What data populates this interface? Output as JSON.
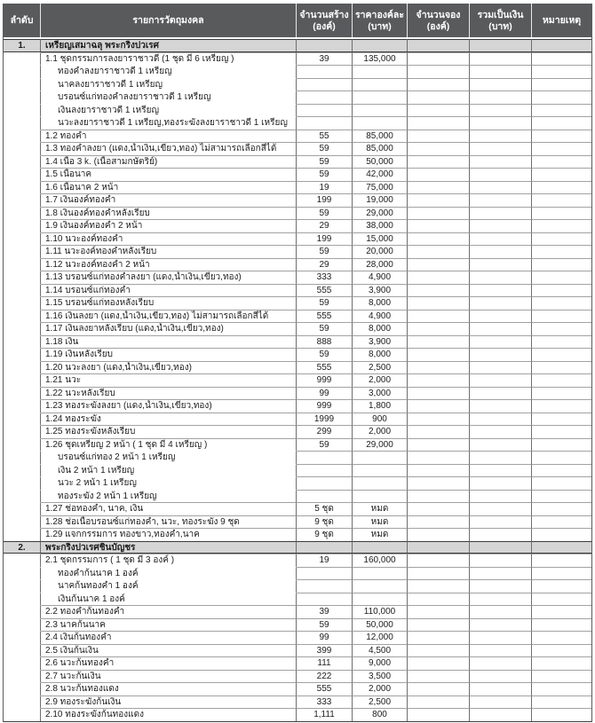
{
  "table": {
    "headers": [
      {
        "line1": "ลำดับ",
        "line2": ""
      },
      {
        "line1": "รายการวัตถุมงคล",
        "line2": ""
      },
      {
        "line1": "จำนวนสร้าง",
        "line2": "(องค์)"
      },
      {
        "line1": "ราคาองค์ละ",
        "line2": "(บาท)"
      },
      {
        "line1": "จำนวนจอง",
        "line2": "(องค์)"
      },
      {
        "line1": "รวมเป็นเงิน",
        "line2": "(บาท)"
      },
      {
        "line1": "หมายเหตุ",
        "line2": ""
      }
    ],
    "rows": [
      {
        "type": "section",
        "no": "1.",
        "item": "เหรียญเสมาฉลุ พระกริ่งปวเรศ",
        "made": "",
        "price": ""
      },
      {
        "type": "item",
        "no": "",
        "item": "1.1 ชุดกรรมการลงยาราชาวดี (1 ชุด มี 6 เหรียญ )",
        "made": "39",
        "price": "135,000"
      },
      {
        "type": "sub",
        "no": "",
        "item": "ทองคำลงยาราชาวดี 1 เหรียญ",
        "made": "",
        "price": ""
      },
      {
        "type": "sub",
        "no": "",
        "item": "นาคลงยาราชาวดี 1 เหรียญ",
        "made": "",
        "price": ""
      },
      {
        "type": "sub",
        "no": "",
        "item": "บรอนซ์แก่ทองคำลงยาราชาวดี 1 เหรียญ",
        "made": "",
        "price": ""
      },
      {
        "type": "sub",
        "no": "",
        "item": "เงินลงยาราชาวดี 1 เหรียญ",
        "made": "",
        "price": ""
      },
      {
        "type": "sub",
        "no": "",
        "item": "นวะลงยาราชาวดี 1 เหรียญ,ทองระฆังลงยาราชาวดี 1 เหรียญ",
        "made": "",
        "price": ""
      },
      {
        "type": "item",
        "no": "",
        "item": "1.2 ทองคำ",
        "made": "55",
        "price": "85,000"
      },
      {
        "type": "item",
        "no": "",
        "item": "1.3 ทองคำลงยา (แดง,น้ำเงิน,เขียว,ทอง) ไม่สามารถเลือกสีได้",
        "made": "59",
        "price": "85,000"
      },
      {
        "type": "item",
        "no": "",
        "item": "1.4 เนื้อ 3 k. (เนื้อสามกษัตริย์)",
        "made": "59",
        "price": "50,000"
      },
      {
        "type": "item",
        "no": "",
        "item": "1.5 เนื้อนาค",
        "made": "59",
        "price": "42,000"
      },
      {
        "type": "item",
        "no": "",
        "item": "1.6 เนื้อนาค 2 หน้า",
        "made": "19",
        "price": "75,000"
      },
      {
        "type": "item",
        "no": "",
        "item": "1.7 เงินองค์ทองคำ",
        "made": "199",
        "price": "19,000"
      },
      {
        "type": "item",
        "no": "",
        "item": "1.8 เงินองค์ทองคำหลังเรียบ",
        "made": "59",
        "price": "29,000"
      },
      {
        "type": "item",
        "no": "",
        "item": "1.9 เงินองค์ทองคำ 2 หน้า",
        "made": "29",
        "price": "38,000"
      },
      {
        "type": "item",
        "no": "",
        "item": "1.10 นวะองค์ทองคำ",
        "made": "199",
        "price": "15,000"
      },
      {
        "type": "item",
        "no": "",
        "item": "1.11 นวะองค์ทองคำหลังเรียบ",
        "made": "59",
        "price": "20,000"
      },
      {
        "type": "item",
        "no": "",
        "item": "1.12 นวะองค์ทองคำ 2 หน้า",
        "made": "29",
        "price": "28,000"
      },
      {
        "type": "item",
        "no": "",
        "item": "1.13 บรอนซ์แก่ทองคำลงยา (แดง,น้ำเงิน,เขียว,ทอง)",
        "made": "333",
        "price": "4,900"
      },
      {
        "type": "item",
        "no": "",
        "item": "1.14 บรอนซ์แก่ทองคำ",
        "made": "555",
        "price": "3,900"
      },
      {
        "type": "item",
        "no": "",
        "item": "1.15 บรอนซ์แก่ทองหลังเรียบ",
        "made": "59",
        "price": "8,000"
      },
      {
        "type": "item",
        "no": "",
        "item": "1.16 เงินลงยา (แดง,น้ำเงิน,เขียว,ทอง) ไม่สามารถเลือกสีได้",
        "made": "555",
        "price": "4,900"
      },
      {
        "type": "item",
        "no": "",
        "item": "1.17 เงินลงยาหลังเรียบ (แดง,น้ำเงิน,เขียว,ทอง)",
        "made": "59",
        "price": "8,000"
      },
      {
        "type": "item",
        "no": "",
        "item": "1.18 เงิน",
        "made": "888",
        "price": "3,900"
      },
      {
        "type": "item",
        "no": "",
        "item": "1.19 เงินหลังเรียบ",
        "made": "59",
        "price": "8,000"
      },
      {
        "type": "item",
        "no": "",
        "item": "1.20 นวะลงยา (แดง,น้ำเงิน,เขียว,ทอง)",
        "made": "555",
        "price": "2,500"
      },
      {
        "type": "item",
        "no": "",
        "item": "1.21 นวะ",
        "made": "999",
        "price": "2,000"
      },
      {
        "type": "item",
        "no": "",
        "item": "1.22 นวะหลังเรียบ",
        "made": "99",
        "price": "3,000"
      },
      {
        "type": "item",
        "no": "",
        "item": "1.23 ทองระฆังลงยา (แดง,น้ำเงิน,เขียว,ทอง)",
        "made": "999",
        "price": "1,800"
      },
      {
        "type": "item",
        "no": "",
        "item": "1.24 ทองระฆัง",
        "made": "1999",
        "price": "900"
      },
      {
        "type": "item",
        "no": "",
        "item": "1.25 ทองระฆังหลังเรียบ",
        "made": "299",
        "price": "2,000"
      },
      {
        "type": "item",
        "no": "",
        "item": "1.26 ชุดเหรียญ 2 หน้า ( 1 ชุด มี 4 เหรียญ )",
        "made": "59",
        "price": "29,000"
      },
      {
        "type": "sub",
        "no": "",
        "item": "บรอนซ์แก่ทอง 2 หน้า 1 เหรียญ",
        "made": "",
        "price": ""
      },
      {
        "type": "sub",
        "no": "",
        "item": "เงิน 2 หน้า 1 เหรียญ",
        "made": "",
        "price": ""
      },
      {
        "type": "sub",
        "no": "",
        "item": "นวะ 2 หน้า 1 เหรียญ",
        "made": "",
        "price": ""
      },
      {
        "type": "sub",
        "no": "",
        "item": "ทองระฆัง 2 หน้า 1 เหรียญ",
        "made": "",
        "price": ""
      },
      {
        "type": "item",
        "no": "",
        "item": "1.27 ช่อทองคำ, นาค, เงิน",
        "made": "5 ชุด",
        "price": "หมด"
      },
      {
        "type": "item",
        "no": "",
        "item": "1.28 ช่อเนื้อบรอนซ์แก่ทองคำ, นวะ, ทองระฆัง 9 ชุด",
        "made": "9 ชุด",
        "price": "หมด"
      },
      {
        "type": "item",
        "no": "",
        "item": "1.29 แจกกรรมการ ทองขาว,ทองคำ,นาค",
        "made": "9 ชุด",
        "price": "หมด"
      },
      {
        "type": "section",
        "no": "2.",
        "item": "พระกริ่งปวเรศชินบัญชร",
        "made": "",
        "price": ""
      },
      {
        "type": "item",
        "no": "",
        "item": "2.1 ชุดกรรมการ ( 1 ชุด มี 3 องค์ )",
        "made": "19",
        "price": "160,000"
      },
      {
        "type": "sub",
        "no": "",
        "item": "ทองคำก้นนาค 1 องค์",
        "made": "",
        "price": ""
      },
      {
        "type": "sub",
        "no": "",
        "item": "นาคก้นทองคำ 1 องค์",
        "made": "",
        "price": ""
      },
      {
        "type": "sub",
        "no": "",
        "item": "เงินก้นนาค 1 องค์",
        "made": "",
        "price": ""
      },
      {
        "type": "item",
        "no": "",
        "item": "2.2 ทองคำก้นทองคำ",
        "made": "39",
        "price": "110,000"
      },
      {
        "type": "item",
        "no": "",
        "item": "2.3 นาคก้นนาค",
        "made": "59",
        "price": "50,000"
      },
      {
        "type": "item",
        "no": "",
        "item": "2.4 เงินก้นทองคำ",
        "made": "99",
        "price": "12,000"
      },
      {
        "type": "item",
        "no": "",
        "item": "2.5 เงินก้นเงิน",
        "made": "399",
        "price": "4,500"
      },
      {
        "type": "item",
        "no": "",
        "item": "2.6 นวะก้นทองคำ",
        "made": "111",
        "price": "9,000"
      },
      {
        "type": "item",
        "no": "",
        "item": "2.7 นวะก้นเงิน",
        "made": "222",
        "price": "3,500"
      },
      {
        "type": "item",
        "no": "",
        "item": "2.8 นวะก้นทองแดง",
        "made": "555",
        "price": "2,000"
      },
      {
        "type": "item",
        "no": "",
        "item": "2.9 ทองระฆังก้นเงิน",
        "made": "333",
        "price": "2,500"
      },
      {
        "type": "item",
        "no": "",
        "item": "2.10 ทองระฆังก้นทองแดง",
        "made": "1,111",
        "price": "800"
      }
    ]
  },
  "colors": {
    "header_bg": "#595a5c",
    "header_text": "#ffffff",
    "section_bg": "#d5d5d5",
    "grid_line": "#a2a2a2",
    "column_line": "#6e6e6e"
  }
}
